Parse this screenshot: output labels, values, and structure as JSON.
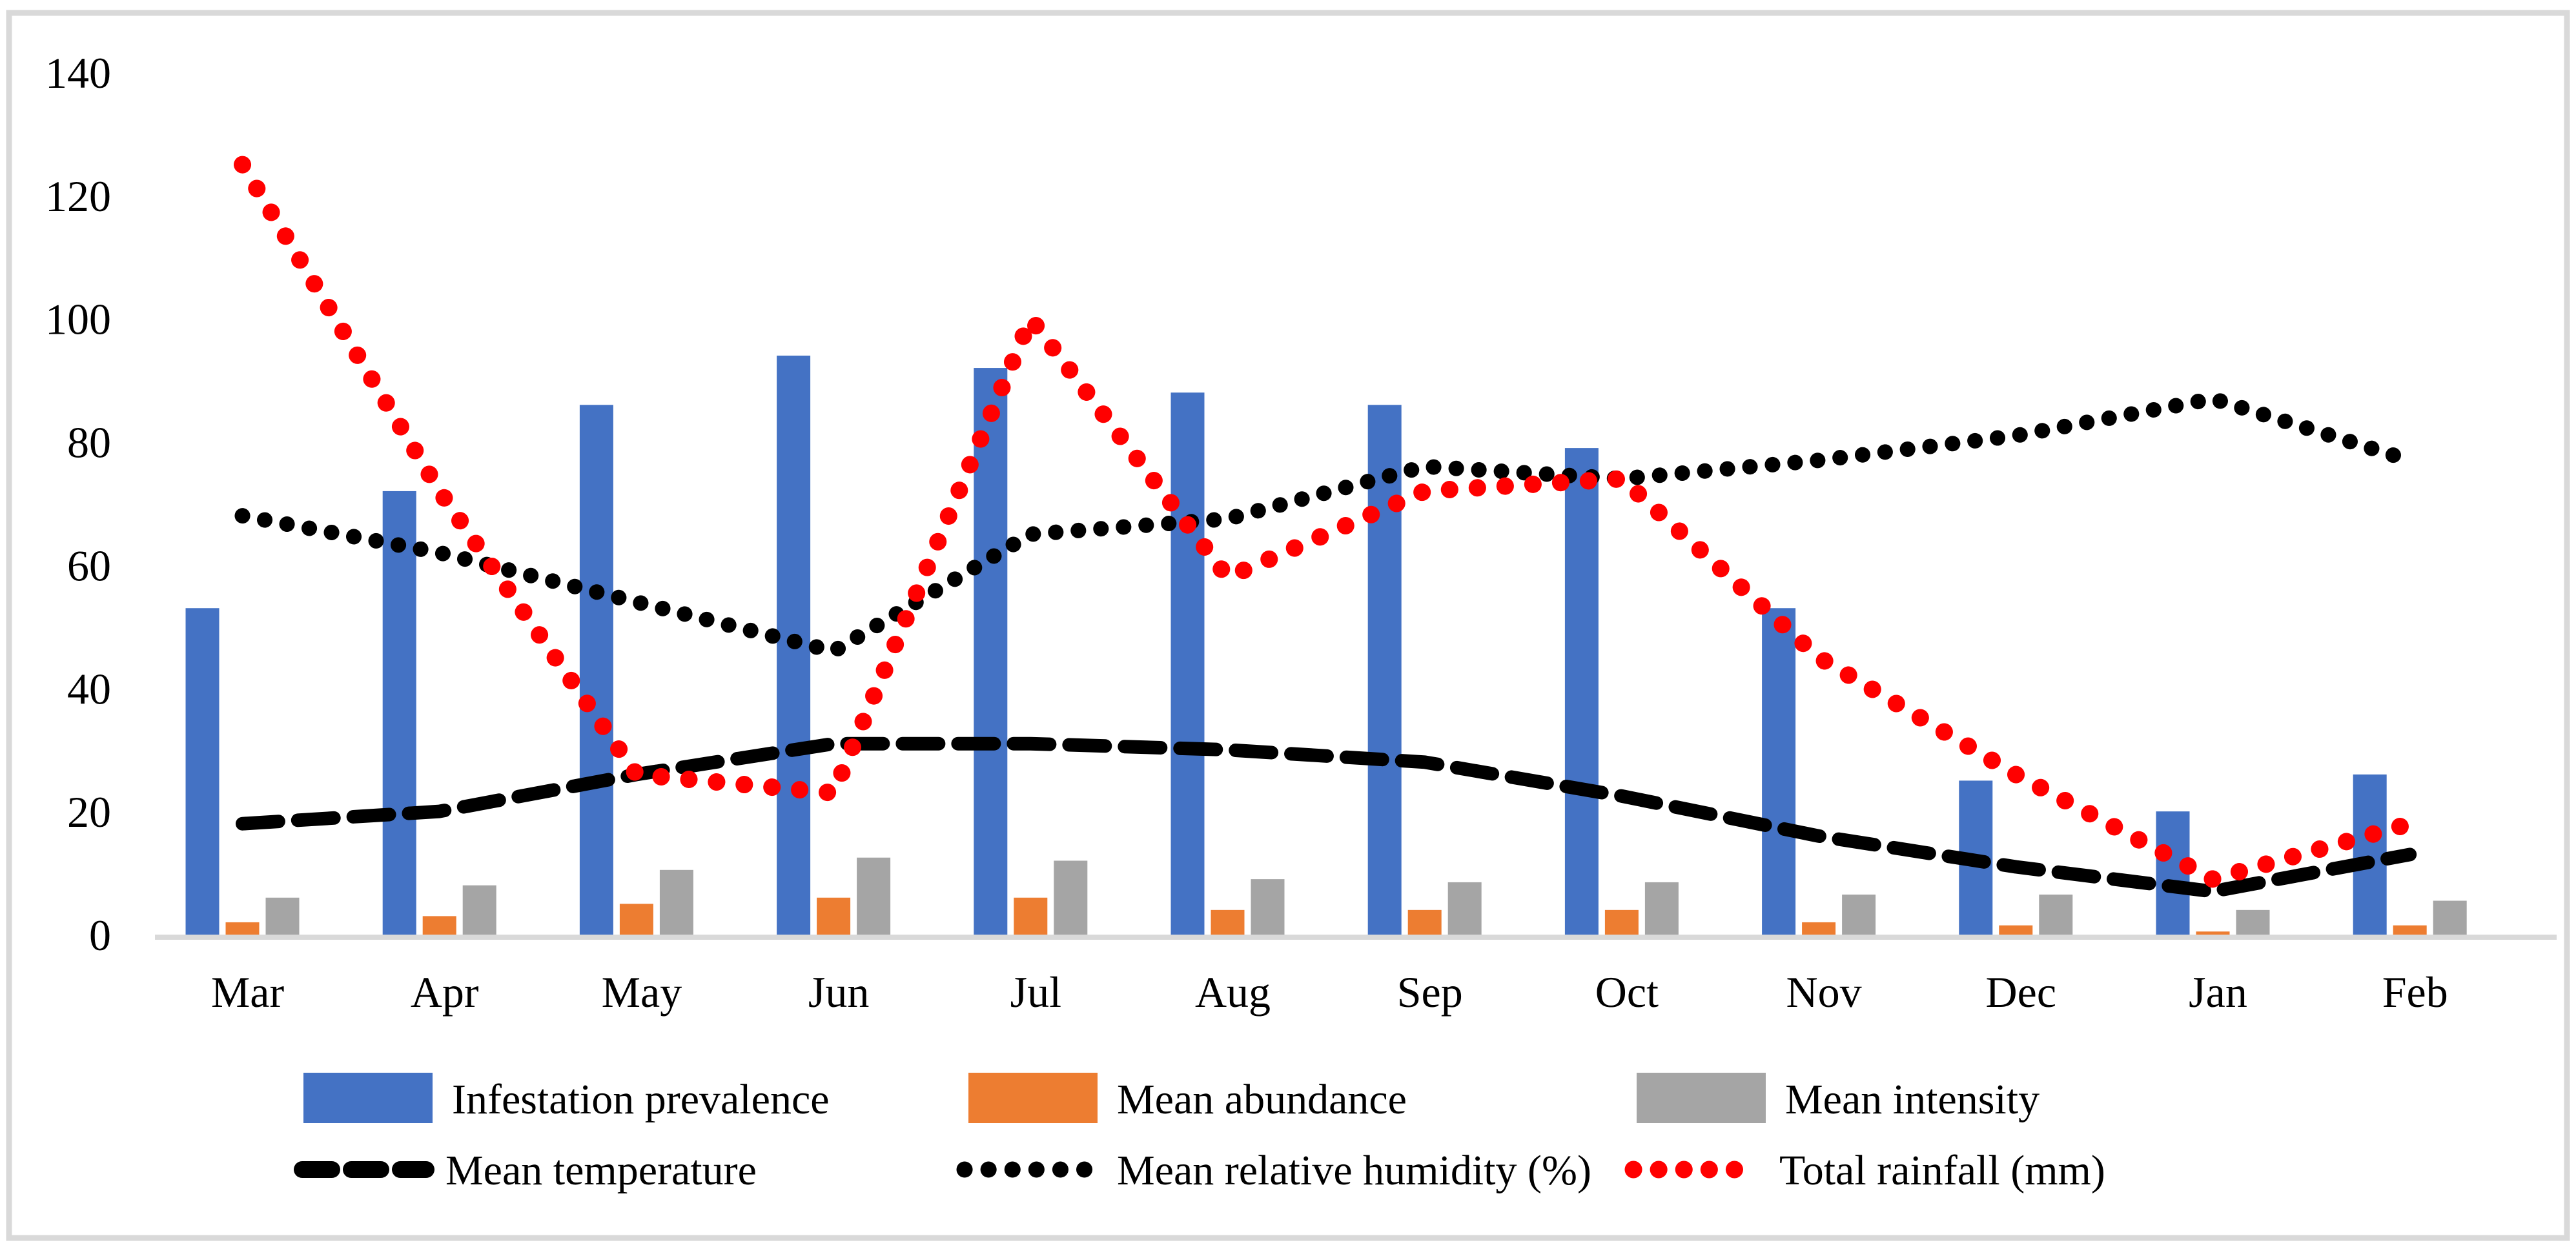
{
  "chart_data": {
    "type": "combo-bar-line",
    "title": "",
    "categories": [
      "Mar",
      "Apr",
      "May",
      "Jun",
      "Jul",
      "Aug",
      "Sep",
      "Oct",
      "Nov",
      "Dec",
      "Jan",
      "Feb"
    ],
    "y_axis": {
      "min": 0,
      "max": 140,
      "tick_step": 20,
      "tick_labels": [
        "140",
        "120",
        "100",
        "80",
        "60",
        "40",
        "20",
        "0"
      ],
      "tick_values": [
        140,
        120,
        100,
        80,
        60,
        40,
        20,
        0
      ]
    },
    "x_axis": {
      "label": "",
      "line_color": "#d9d9d9"
    },
    "grid": false,
    "legend_position": "bottom",
    "background_color": "#ffffff",
    "frame_border_color": "#d9d9d9",
    "bar_series": [
      {
        "name": "Infestation prevalence",
        "color": "#4472c4",
        "values": [
          53,
          72,
          86,
          94,
          92,
          88,
          86,
          79,
          53,
          25,
          20,
          26
        ]
      },
      {
        "name": "Mean abundance",
        "color": "#ed7d31",
        "values": [
          2,
          3,
          5,
          6,
          6,
          4,
          4,
          4,
          2,
          1.5,
          0.5,
          1.5
        ]
      },
      {
        "name": "Mean intensity",
        "color": "#a5a5a5",
        "values": [
          6,
          8,
          10.5,
          12.5,
          12,
          9,
          8.5,
          8.5,
          6.5,
          6.5,
          4,
          5.5
        ]
      }
    ],
    "line_series": [
      {
        "name": "Mean temperature",
        "color": "#000000",
        "style": "dashed",
        "values": [
          18,
          20,
          26,
          31,
          31,
          30,
          28,
          22.5,
          16,
          11,
          7,
          13
        ]
      },
      {
        "name": "Mean relative humidity (%)",
        "color": "#000000",
        "style": "dotted",
        "values": [
          68,
          62,
          54,
          46,
          65,
          67.5,
          76,
          74,
          77,
          81,
          87,
          77
        ]
      },
      {
        "name": "Total rainfall (mm)",
        "color": "#ff0000",
        "style": "dotted",
        "values": [
          125,
          72,
          26,
          23,
          100,
          58,
          72,
          74,
          45,
          26,
          9,
          18
        ]
      }
    ]
  }
}
